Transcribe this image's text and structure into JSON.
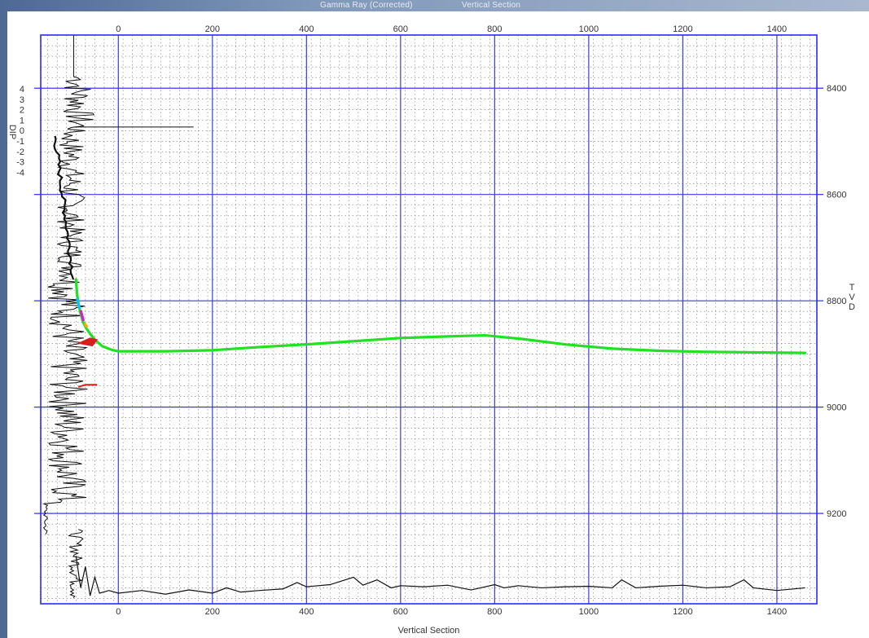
{
  "header": {
    "left_title": "Gamma Ray (Corrected)",
    "right_title": "Vertical Section"
  },
  "chart_data": {
    "type": "line",
    "title": "",
    "xlabel": "Vertical Section",
    "ylabel": "TVD",
    "left_track_label": "DIP",
    "xlim": [
      -165,
      1485
    ],
    "ylim": [
      8300,
      9370
    ],
    "y_inverted": true,
    "grid": true,
    "x_ticks": [
      0,
      200,
      400,
      600,
      800,
      1000,
      1200,
      1400
    ],
    "y_ticks": [
      8400,
      8600,
      8800,
      9000,
      9200
    ],
    "dip_ticks": [
      "4",
      "3",
      "2",
      "1",
      "0",
      "-1",
      "-2",
      "-3",
      "-4"
    ],
    "colors": {
      "frame": "#2a2aff",
      "major_grid": "#3a3ae8",
      "minor_grid": "#777777",
      "well_path": "#22e022",
      "log": "#111111",
      "marker": "#d81e1e"
    },
    "series": [
      {
        "key": "well_path",
        "x": [
          -90,
          -88,
          -85,
          -80,
          -75,
          -68,
          -60,
          -50,
          -35,
          -15,
          0,
          100,
          200,
          300,
          400,
          500,
          600,
          700,
          780,
          860,
          950,
          1050,
          1150,
          1250,
          1350,
          1460
        ],
        "y": [
          8760,
          8785,
          8805,
          8825,
          8840,
          8852,
          8862,
          8873,
          8885,
          8892,
          8895,
          8895,
          8893,
          8887,
          8882,
          8876,
          8870,
          8867,
          8865,
          8872,
          8882,
          8890,
          8894,
          8896,
          8897,
          8898
        ]
      },
      {
        "key": "bottom_log",
        "x": [
          -90,
          -80,
          -70,
          -60,
          -50,
          -40,
          -20,
          0,
          50,
          100,
          150,
          200,
          230,
          260,
          300,
          350,
          380,
          400,
          450,
          500,
          520,
          550,
          580,
          600,
          650,
          700,
          750,
          800,
          820,
          850,
          900,
          950,
          1000,
          1050,
          1070,
          1100,
          1150,
          1200,
          1250,
          1300,
          1330,
          1350,
          1400,
          1460
        ],
        "y": [
          9280,
          9340,
          9300,
          9355,
          9320,
          9350,
          9345,
          9350,
          9345,
          9352,
          9344,
          9350,
          9340,
          9348,
          9345,
          9342,
          9330,
          9338,
          9334,
          9320,
          9335,
          9325,
          9340,
          9336,
          9338,
          9335,
          9344,
          9334,
          9340,
          9336,
          9340,
          9338,
          9337,
          9340,
          9325,
          9340,
          9337,
          9335,
          9340,
          9338,
          9325,
          9340,
          9345,
          9340
        ]
      }
    ]
  }
}
